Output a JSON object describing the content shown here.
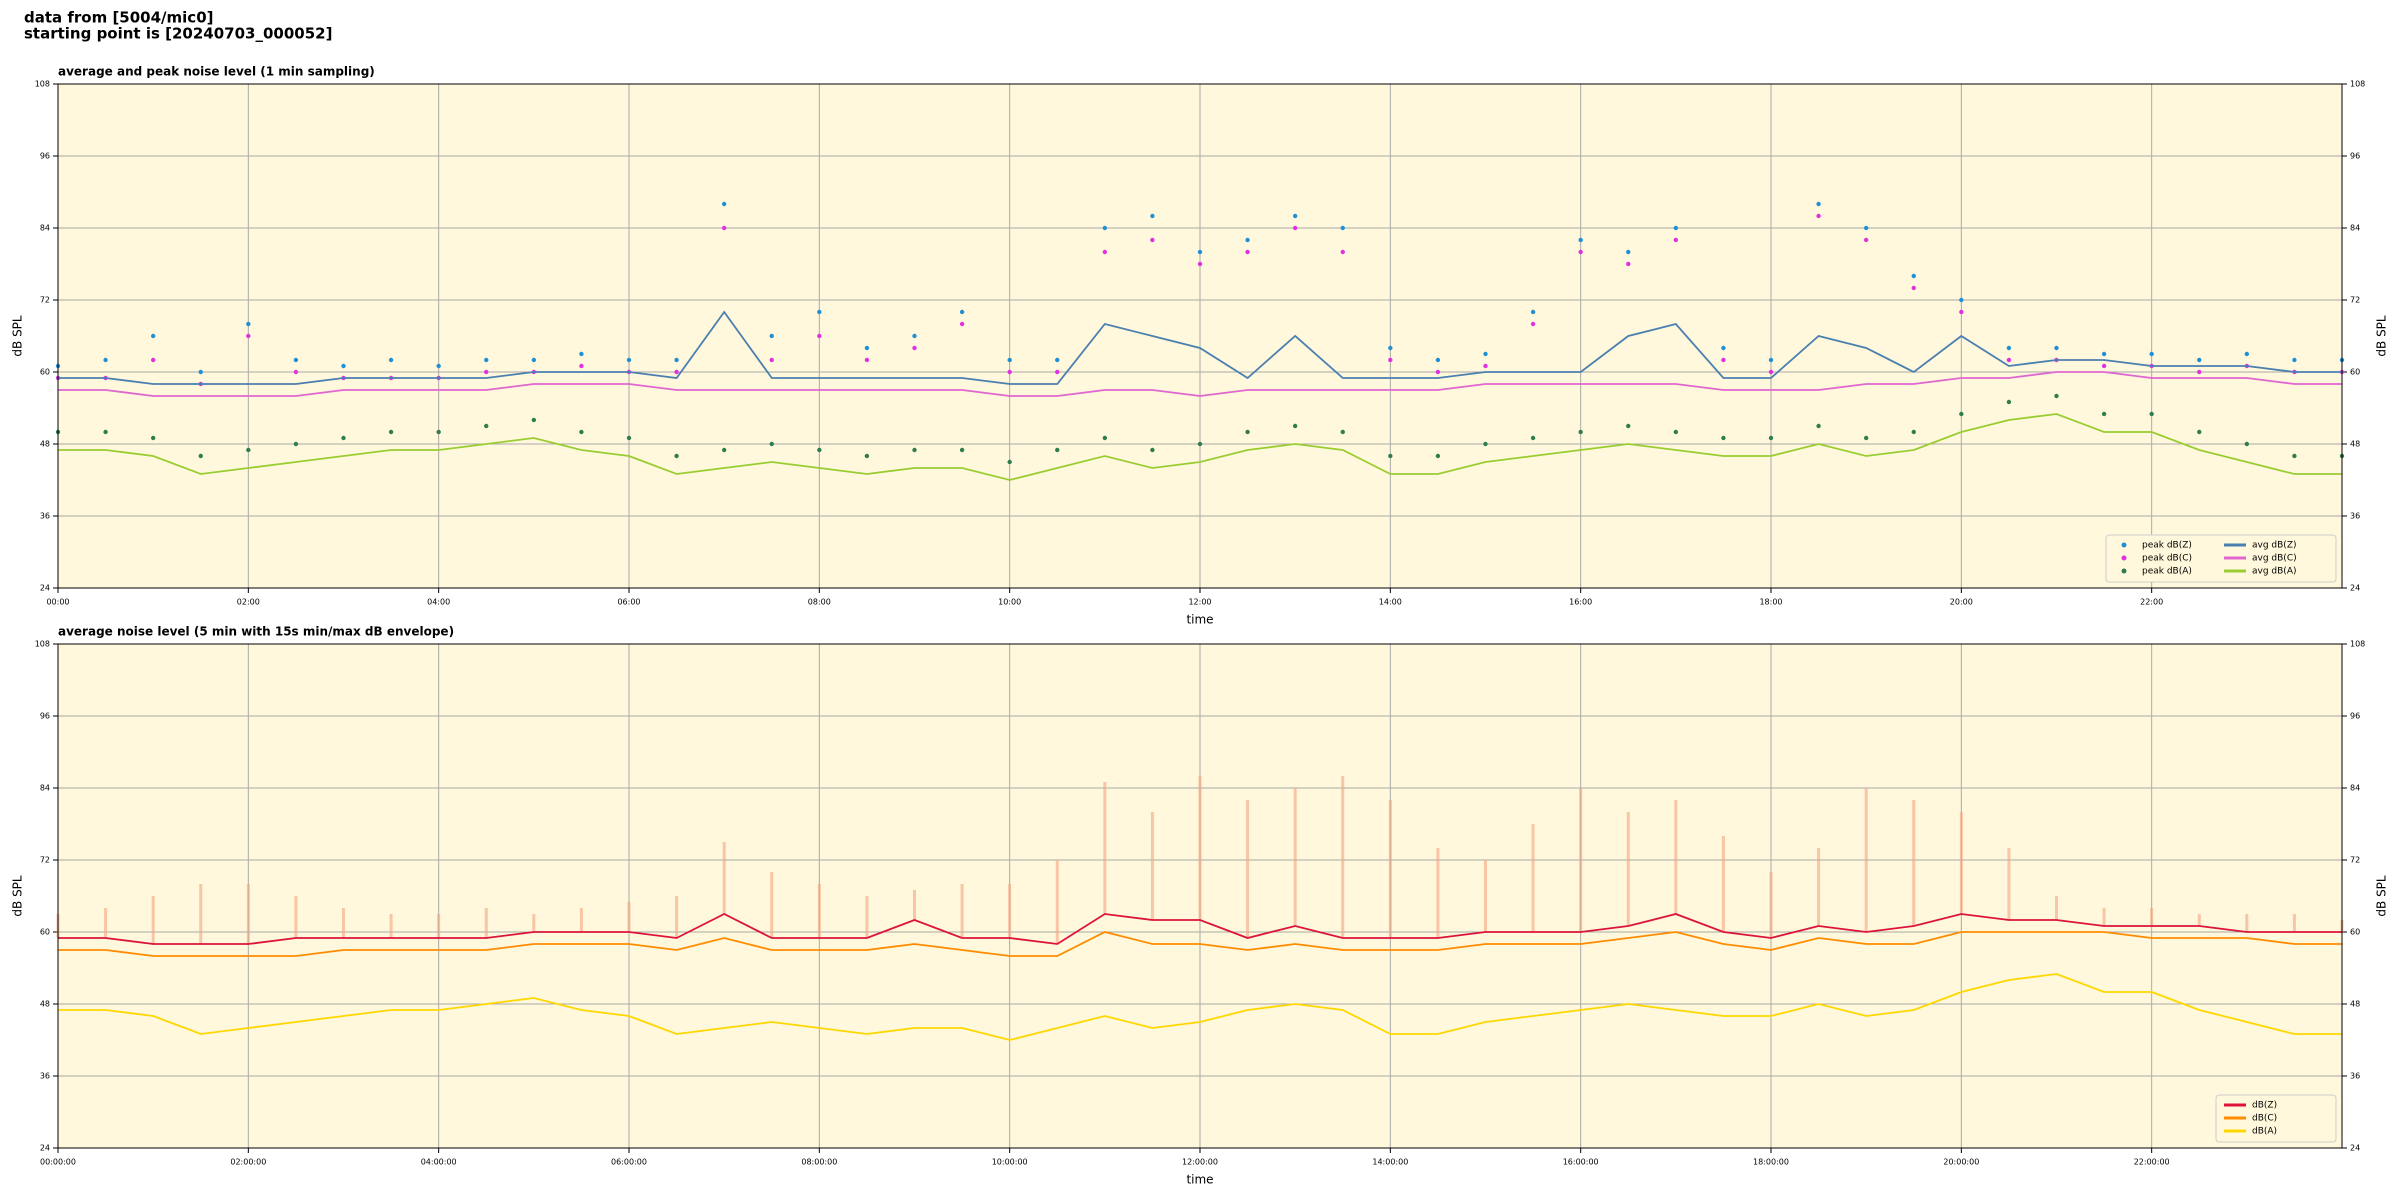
{
  "page_title": [
    "data from [5004/mic0]",
    "starting point is [20240703_000052]"
  ],
  "chart_data": [
    {
      "type": "line",
      "title": "average and peak noise level (1 min sampling)",
      "xlabel": "time",
      "ylabel": "dB SPL",
      "xlim": [
        0,
        24
      ],
      "ylim": [
        24,
        108
      ],
      "yticks": [
        24,
        36,
        48,
        60,
        72,
        84,
        96,
        108
      ],
      "xticks": [
        {
          "value": 0,
          "label": "00:00"
        },
        {
          "value": 2,
          "label": "02:00"
        },
        {
          "value": 4,
          "label": "04:00"
        },
        {
          "value": 6,
          "label": "06:00"
        },
        {
          "value": 8,
          "label": "08:00"
        },
        {
          "value": 10,
          "label": "10:00"
        },
        {
          "value": 12,
          "label": "12:00"
        },
        {
          "value": 14,
          "label": "14:00"
        },
        {
          "value": 16,
          "label": "16:00"
        },
        {
          "value": 18,
          "label": "18:00"
        },
        {
          "value": 20,
          "label": "20:00"
        },
        {
          "value": 22,
          "label": "22:00"
        }
      ],
      "grid": true,
      "background": "#fff8dc",
      "legend": "lower right",
      "legend_columns": 2,
      "x": [
        0,
        0.5,
        1,
        1.5,
        2,
        2.5,
        3,
        3.5,
        4,
        4.5,
        5,
        5.5,
        6,
        6.5,
        7,
        7.5,
        8,
        8.5,
        9,
        9.5,
        10,
        10.5,
        11,
        11.5,
        12,
        12.5,
        13,
        13.5,
        14,
        14.5,
        15,
        15.5,
        16,
        16.5,
        17,
        17.5,
        18,
        18.5,
        19,
        19.5,
        20,
        20.5,
        21,
        21.5,
        22,
        22.5,
        23,
        23.5,
        24
      ],
      "series": [
        {
          "name": "peak dB(Z)",
          "kind": "points",
          "color": "#1f8fd6",
          "values": [
            61,
            62,
            66,
            60,
            68,
            62,
            61,
            62,
            61,
            62,
            62,
            63,
            62,
            62,
            88,
            66,
            70,
            64,
            66,
            70,
            62,
            62,
            84,
            86,
            80,
            82,
            86,
            84,
            64,
            62,
            63,
            70,
            82,
            80,
            84,
            64,
            62,
            88,
            84,
            76,
            72,
            64,
            64,
            63,
            63,
            62,
            63,
            62,
            62
          ]
        },
        {
          "name": "peak dB(C)",
          "kind": "points",
          "color": "#e030e0",
          "values": [
            59,
            59,
            62,
            58,
            66,
            60,
            59,
            59,
            59,
            60,
            60,
            61,
            60,
            60,
            84,
            62,
            66,
            62,
            64,
            68,
            60,
            60,
            80,
            82,
            78,
            80,
            84,
            80,
            62,
            60,
            61,
            68,
            80,
            78,
            82,
            62,
            60,
            86,
            82,
            74,
            70,
            62,
            62,
            61,
            61,
            60,
            61,
            60,
            60
          ]
        },
        {
          "name": "peak dB(A)",
          "kind": "points",
          "color": "#2e7d4f",
          "values": [
            50,
            50,
            49,
            46,
            47,
            48,
            49,
            50,
            50,
            51,
            52,
            50,
            49,
            46,
            47,
            48,
            47,
            46,
            47,
            47,
            45,
            47,
            49,
            47,
            48,
            50,
            51,
            50,
            46,
            46,
            48,
            49,
            50,
            51,
            50,
            49,
            49,
            51,
            49,
            50,
            53,
            55,
            56,
            53,
            53,
            50,
            48,
            46,
            46
          ]
        },
        {
          "name": "avg dB(Z)",
          "kind": "line",
          "color": "#4a7fb0",
          "values": [
            59,
            59,
            58,
            58,
            58,
            58,
            59,
            59,
            59,
            59,
            60,
            60,
            60,
            59,
            70,
            59,
            59,
            59,
            59,
            59,
            58,
            58,
            68,
            66,
            64,
            59,
            66,
            59,
            59,
            59,
            60,
            60,
            60,
            66,
            68,
            59,
            59,
            66,
            64,
            60,
            66,
            61,
            62,
            62,
            61,
            61,
            61,
            60,
            60
          ]
        },
        {
          "name": "avg dB(C)",
          "kind": "line",
          "color": "#e066d0",
          "values": [
            57,
            57,
            56,
            56,
            56,
            56,
            57,
            57,
            57,
            57,
            58,
            58,
            58,
            57,
            57,
            57,
            57,
            57,
            57,
            57,
            56,
            56,
            57,
            57,
            56,
            57,
            57,
            57,
            57,
            57,
            58,
            58,
            58,
            58,
            58,
            57,
            57,
            57,
            58,
            58,
            59,
            59,
            60,
            60,
            59,
            59,
            59,
            58,
            58
          ]
        },
        {
          "name": "avg dB(A)",
          "kind": "line",
          "color": "#9acd32",
          "values": [
            47,
            47,
            46,
            43,
            44,
            45,
            46,
            47,
            47,
            48,
            49,
            47,
            46,
            43,
            44,
            45,
            44,
            43,
            44,
            44,
            42,
            44,
            46,
            44,
            45,
            47,
            48,
            47,
            43,
            43,
            45,
            46,
            47,
            48,
            47,
            46,
            46,
            48,
            46,
            47,
            50,
            52,
            53,
            50,
            50,
            47,
            45,
            43,
            43
          ]
        }
      ]
    },
    {
      "type": "line",
      "title": "average noise level (5 min with 15s min/max dB envelope)",
      "xlabel": "time",
      "ylabel": "dB SPL",
      "xlim": [
        0,
        24
      ],
      "ylim": [
        24,
        108
      ],
      "yticks": [
        24,
        36,
        48,
        60,
        72,
        84,
        96,
        108
      ],
      "xticks": [
        {
          "value": 0,
          "label": "00:00:00"
        },
        {
          "value": 2,
          "label": "02:00:00"
        },
        {
          "value": 4,
          "label": "04:00:00"
        },
        {
          "value": 6,
          "label": "06:00:00"
        },
        {
          "value": 8,
          "label": "08:00:00"
        },
        {
          "value": 10,
          "label": "10:00:00"
        },
        {
          "value": 12,
          "label": "12:00:00"
        },
        {
          "value": 14,
          "label": "14:00:00"
        },
        {
          "value": 16,
          "label": "16:00:00"
        },
        {
          "value": 18,
          "label": "18:00:00"
        },
        {
          "value": 20,
          "label": "20:00:00"
        },
        {
          "value": 22,
          "label": "22:00:00"
        }
      ],
      "grid": true,
      "background": "#fff8dc",
      "legend": "lower right",
      "legend_columns": 1,
      "x": [
        0,
        0.5,
        1,
        1.5,
        2,
        2.5,
        3,
        3.5,
        4,
        4.5,
        5,
        5.5,
        6,
        6.5,
        7,
        7.5,
        8,
        8.5,
        9,
        9.5,
        10,
        10.5,
        11,
        11.5,
        12,
        12.5,
        13,
        13.5,
        14,
        14.5,
        15,
        15.5,
        16,
        16.5,
        17,
        17.5,
        18,
        18.5,
        19,
        19.5,
        20,
        20.5,
        21,
        21.5,
        22,
        22.5,
        23,
        23.5,
        24
      ],
      "envelope": {
        "color": "#f4a582",
        "values": [
          63,
          64,
          66,
          68,
          68,
          66,
          64,
          63,
          63,
          64,
          63,
          64,
          65,
          66,
          75,
          70,
          68,
          66,
          67,
          68,
          68,
          72,
          85,
          80,
          86,
          82,
          84,
          86,
          82,
          74,
          72,
          78,
          84,
          80,
          82,
          76,
          70,
          74,
          84,
          82,
          80,
          74,
          66,
          64,
          64,
          63,
          63,
          63,
          62
        ]
      },
      "series": [
        {
          "name": "dB(Z)",
          "kind": "line",
          "color": "#dc143c",
          "values": [
            59,
            59,
            58,
            58,
            58,
            59,
            59,
            59,
            59,
            59,
            60,
            60,
            60,
            59,
            63,
            59,
            59,
            59,
            62,
            59,
            59,
            58,
            63,
            62,
            62,
            59,
            61,
            59,
            59,
            59,
            60,
            60,
            60,
            61,
            63,
            60,
            59,
            61,
            60,
            61,
            63,
            62,
            62,
            61,
            61,
            61,
            60,
            60,
            60
          ]
        },
        {
          "name": "dB(C)",
          "kind": "line",
          "color": "#ff8c00",
          "values": [
            57,
            57,
            56,
            56,
            56,
            56,
            57,
            57,
            57,
            57,
            58,
            58,
            58,
            57,
            59,
            57,
            57,
            57,
            58,
            57,
            56,
            56,
            60,
            58,
            58,
            57,
            58,
            57,
            57,
            57,
            58,
            58,
            58,
            59,
            60,
            58,
            57,
            59,
            58,
            58,
            60,
            60,
            60,
            60,
            59,
            59,
            59,
            58,
            58
          ]
        },
        {
          "name": "dB(A)",
          "kind": "line",
          "color": "#ffd700",
          "values": [
            47,
            47,
            46,
            43,
            44,
            45,
            46,
            47,
            47,
            48,
            49,
            47,
            46,
            43,
            44,
            45,
            44,
            43,
            44,
            44,
            42,
            44,
            46,
            44,
            45,
            47,
            48,
            47,
            43,
            43,
            45,
            46,
            47,
            48,
            47,
            46,
            46,
            48,
            46,
            47,
            50,
            52,
            53,
            50,
            50,
            47,
            45,
            43,
            43
          ]
        }
      ]
    }
  ]
}
